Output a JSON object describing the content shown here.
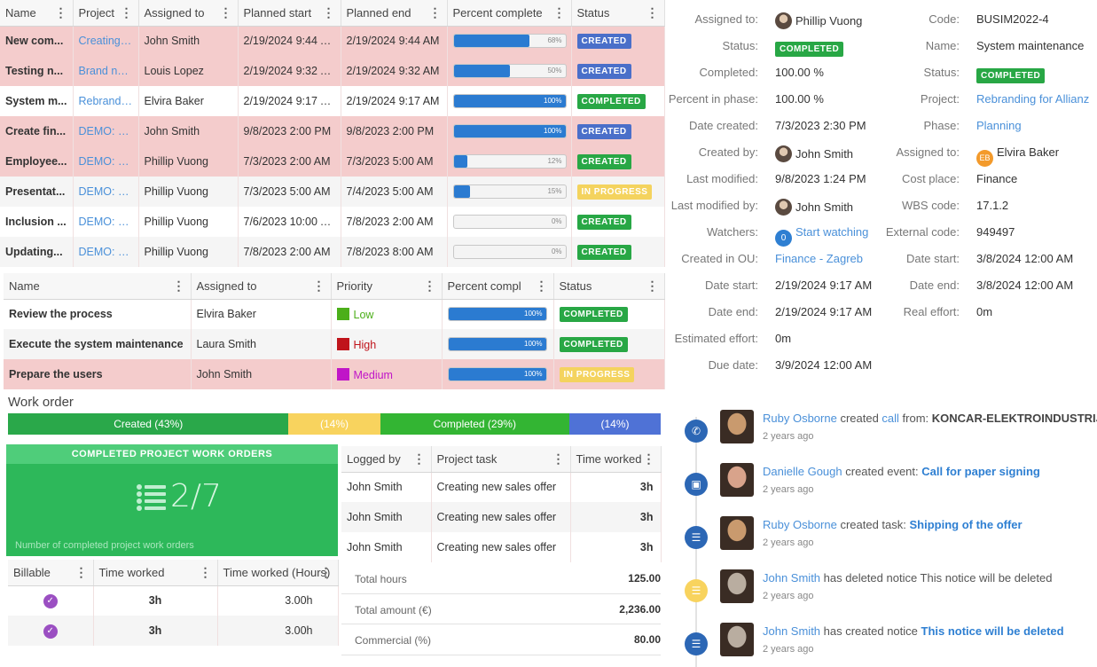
{
  "tasks_table": {
    "columns": [
      "Name",
      "Project",
      "Assigned to",
      "Planned start",
      "Planned end",
      "Percent complete",
      "Status"
    ],
    "rows": [
      {
        "name": "New com...",
        "project": "Creating a n",
        "assigned": "John Smith",
        "start": "2/19/2024 9:44 A...",
        "end": "2/19/2024 9:44 AM",
        "pct": 68,
        "pct_label": "68%",
        "status": "CREATED",
        "status_style": "created"
      },
      {
        "name": "Testing n...",
        "project": "Brand new o",
        "assigned": "Louis Lopez",
        "start": "2/19/2024 9:32 A...",
        "end": "2/19/2024 9:32 AM",
        "pct": 50,
        "pct_label": "50%",
        "status": "CREATED",
        "status_style": "created"
      },
      {
        "name": "System m...",
        "project": "Rebranding",
        "assigned": "Elvira Baker",
        "start": "2/19/2024 9:17 A...",
        "end": "2/19/2024 9:17 AM",
        "pct": 100,
        "pct_label": "100%",
        "status": "COMPLETED",
        "status_style": "completed"
      },
      {
        "name": "Create fin...",
        "project": "DEMO: Mob",
        "assigned": "John Smith",
        "start": "9/8/2023 2:00 PM",
        "end": "9/8/2023 2:00 PM",
        "pct": 100,
        "pct_label": "100%",
        "status": "CREATED",
        "status_style": "created"
      },
      {
        "name": "Employee...",
        "project": "DEMO: Mob",
        "assigned": "Phillip Vuong",
        "start": "7/3/2023 2:00 AM",
        "end": "7/3/2023 5:00 AM",
        "pct": 12,
        "pct_label": "12%",
        "status": "CREATED",
        "status_style": "created-g"
      },
      {
        "name": "Presentat...",
        "project": "DEMO: Mob",
        "assigned": "Phillip Vuong",
        "start": "7/3/2023 5:00 AM",
        "end": "7/4/2023 5:00 AM",
        "pct": 15,
        "pct_label": "15%",
        "status": "IN PROGRESS",
        "status_style": "progress"
      },
      {
        "name": "Inclusion ...",
        "project": "DEMO: Mob",
        "assigned": "Phillip Vuong",
        "start": "7/6/2023 10:00 A...",
        "end": "7/8/2023 2:00 AM",
        "pct": 0,
        "pct_label": "0%",
        "status": "CREATED",
        "status_style": "created-g"
      },
      {
        "name": "Updating...",
        "project": "DEMO: Mob",
        "assigned": "Phillip Vuong",
        "start": "7/8/2023 2:00 AM",
        "end": "7/8/2023 8:00 AM",
        "pct": 0,
        "pct_label": "0%",
        "status": "CREATED",
        "status_style": "created-g"
      }
    ]
  },
  "subtasks_table": {
    "columns": [
      "Name",
      "Assigned to",
      "Priority",
      "Percent compl",
      "Status"
    ],
    "rows": [
      {
        "name": "Review the process",
        "assigned": "Elvira Baker",
        "priority": "Low",
        "priority_color": "#4caf1a",
        "pct": 100,
        "pct_label": "100%",
        "status": "COMPLETED",
        "status_style": "completed"
      },
      {
        "name": "Execute the system maintenance",
        "assigned": "Laura Smith",
        "priority": "High",
        "priority_color": "#c0141b",
        "pct": 100,
        "pct_label": "100%",
        "status": "COMPLETED",
        "status_style": "completed"
      },
      {
        "name": "Prepare the users",
        "assigned": "John Smith",
        "priority": "Medium",
        "priority_color": "#c015c8",
        "pct": 100,
        "pct_label": "100%",
        "status": "IN PROGRESS",
        "status_style": "progress"
      }
    ]
  },
  "work_order": {
    "title": "Work order",
    "segments": [
      {
        "label": "Created (43%)",
        "share": 43,
        "color": "#2aa84a"
      },
      {
        "label": "(14%)",
        "share": 14,
        "color": "#f8d35e"
      },
      {
        "label": "Completed (29%)",
        "share": 29,
        "color": "#33b533"
      },
      {
        "label": "(14%)",
        "share": 14,
        "color": "#4f72d6"
      }
    ]
  },
  "kpi": {
    "title": "COMPLETED PROJECT WORK ORDERS",
    "value": "2/7",
    "footer": "Number of completed project work orders",
    "icon": "list-icon"
  },
  "billable_table": {
    "columns": [
      "Billable",
      "Time worked",
      "Time worked (Hours)"
    ],
    "rows": [
      {
        "time": "3h",
        "hours": "3.00h"
      },
      {
        "time": "3h",
        "hours": "3.00h"
      }
    ]
  },
  "log_table": {
    "columns": [
      "Logged by",
      "Project task",
      "Time worked"
    ],
    "rows": [
      {
        "by": "John Smith",
        "task": "Creating new sales offer",
        "time": "3h"
      },
      {
        "by": "John Smith",
        "task": "Creating new sales offer",
        "time": "3h"
      },
      {
        "by": "John Smith",
        "task": "Creating new sales offer",
        "time": "3h"
      }
    ]
  },
  "totals": [
    {
      "label": "Total hours",
      "value": "125.00"
    },
    {
      "label": "Total amount (€)",
      "value": "2,236.00"
    },
    {
      "label": "Commercial (%)",
      "value": "80.00"
    }
  ],
  "details_left": [
    {
      "label": "Assigned to:",
      "value": "Phillip Vuong",
      "kind": "avatar"
    },
    {
      "label": "Status:",
      "value": "COMPLETED",
      "kind": "badge"
    },
    {
      "label": "Completed:",
      "value": "100.00 %",
      "kind": "text"
    },
    {
      "label": "Percent in phase:",
      "value": "100.00 %",
      "kind": "text"
    },
    {
      "label": "Date created:",
      "value": "7/3/2023 2:30 PM",
      "kind": "text"
    },
    {
      "label": "Created by:",
      "value": "John Smith",
      "kind": "avatar"
    },
    {
      "label": "Last modified:",
      "value": "9/8/2023 1:24 PM",
      "kind": "text"
    },
    {
      "label": "Last modified by:",
      "value": "John Smith",
      "kind": "avatar"
    },
    {
      "label": "Watchers:",
      "value": "Start watching",
      "kind": "watch",
      "count": "0"
    },
    {
      "label": "Created in OU:",
      "value": "Finance - Zagreb",
      "kind": "link"
    },
    {
      "label": "Date start:",
      "value": "2/19/2024 9:17 AM",
      "kind": "text"
    },
    {
      "label": "Date end:",
      "value": "2/19/2024 9:17 AM",
      "kind": "text"
    },
    {
      "label": "Estimated effort:",
      "value": "0m",
      "kind": "text"
    },
    {
      "label": "Due date:",
      "value": "3/9/2024 12:00 AM",
      "kind": "text"
    }
  ],
  "details_right": [
    {
      "label": "Code:",
      "value": "BUSIM2022-4",
      "kind": "text"
    },
    {
      "label": "Name:",
      "value": "System maintenance",
      "kind": "text"
    },
    {
      "label": "Status:",
      "value": "COMPLETED",
      "kind": "badge"
    },
    {
      "label": "Project:",
      "value": "Rebranding for Allianz",
      "kind": "link"
    },
    {
      "label": "Phase:",
      "value": "Planning",
      "kind": "link"
    },
    {
      "label": "Assigned to:",
      "value": "Elvira Baker",
      "kind": "initials",
      "initials": "EB"
    },
    {
      "label": "Cost place:",
      "value": "Finance",
      "kind": "text"
    },
    {
      "label": "WBS code:",
      "value": "17.1.2",
      "kind": "text"
    },
    {
      "label": "External code:",
      "value": "949497",
      "kind": "text"
    },
    {
      "label": "Date start:",
      "value": "3/8/2024 12:00 AM",
      "kind": "text"
    },
    {
      "label": "Date end:",
      "value": "3/8/2024 12:00 AM",
      "kind": "text"
    },
    {
      "label": "Real effort:",
      "value": "0m",
      "kind": "text"
    }
  ],
  "timeline": [
    {
      "icon": "phone-icon",
      "icon_color": "#2c67b5",
      "person": "Ruby Osborne",
      "action": " created ",
      "kind": "call",
      "kind_link": true,
      "sep": " from: ",
      "object": "KONCAR-ELEKTROINDUSTRIJA",
      "object_style": "dark",
      "time": "2 years ago",
      "photo": "#c99a6e"
    },
    {
      "icon": "calendar-icon",
      "icon_color": "#2c67b5",
      "person": "Danielle Gough",
      "action": " created event: ",
      "kind": "",
      "kind_link": false,
      "sep": "",
      "object": "Call for paper signing",
      "object_style": "link",
      "time": "2 years ago",
      "photo": "#d8a38b"
    },
    {
      "icon": "task-icon",
      "icon_color": "#2c67b5",
      "person": "Ruby Osborne",
      "action": " created task: ",
      "kind": "",
      "kind_link": false,
      "sep": "",
      "object": "Shipping of the offer",
      "object_style": "link",
      "time": "2 years ago",
      "photo": "#c99a6e"
    },
    {
      "icon": "notice-icon",
      "icon_color": "#f8d35e",
      "person": "John Smith",
      "action": " has deleted notice This notice will be deleted",
      "kind": "",
      "kind_link": false,
      "sep": "",
      "object": "",
      "object_style": "plain",
      "time": "2 years ago",
      "photo": "#b9ada0"
    },
    {
      "icon": "notice-icon",
      "icon_color": "#2c67b5",
      "person": "John Smith",
      "action": " has created notice ",
      "kind": "",
      "kind_link": false,
      "sep": "",
      "object": "This notice will be deleted",
      "object_style": "link",
      "time": "2 years ago",
      "photo": "#b9ada0"
    }
  ]
}
